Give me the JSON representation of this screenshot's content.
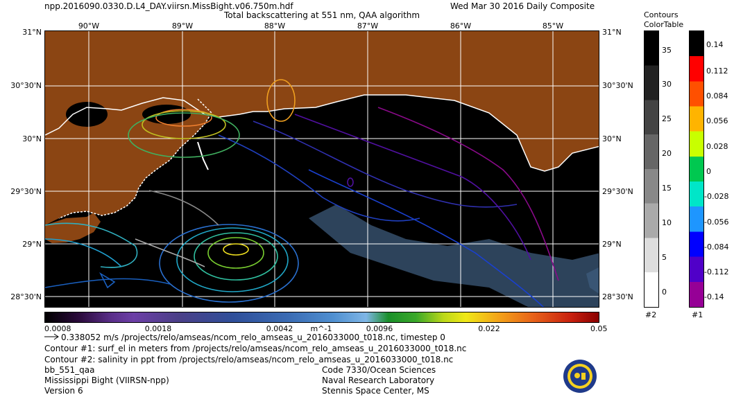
{
  "header": {
    "filename": "npp.2016090.0330.D.L4_DAY.viirsn.MissBight.v06.750m.hdf",
    "title": "Total backscattering at 551 nm, QAA algorithm",
    "date": "Wed Mar 30 2016 Daily Composite"
  },
  "map": {
    "lon_labels": [
      "90°W",
      "89°W",
      "88°W",
      "87°W",
      "86°W",
      "85°W"
    ],
    "lat_labels": [
      "31°N",
      "30°30'N",
      "30°N",
      "29°30'N",
      "29°N",
      "28°30'N"
    ],
    "land_color": "#8b4513",
    "water_color": "#000000"
  },
  "colorbar": {
    "ticks": [
      "0.0008",
      "0.0018",
      "0.0042",
      "m^-1",
      "0.0096",
      "0.022",
      "0.05"
    ]
  },
  "contour_tables": {
    "heading_1": "Contours",
    "heading_2": "ColorTable",
    "c2_ticks": [
      "35",
      "30",
      "25",
      "20",
      "15",
      "10",
      "5",
      "0"
    ],
    "c2_label": "#2",
    "c1_ticks": [
      "0.14",
      "0.112",
      "0.084",
      "0.056",
      "0.028",
      "0",
      "-0.028",
      "-0.056",
      "-0.084",
      "-0.112",
      "-0.14"
    ],
    "c1_label": "#1"
  },
  "footer": {
    "vector_line": "0.338052 m/s /projects/relo/amseas/ncom_relo_amseas_u_2016033000_t018.nc, timestep 0",
    "contour1": "Contour #1: surf_el in meters from /projects/relo/amseas/ncom_relo_amseas_u_2016033000_t018.nc",
    "contour2": "Contour #2: salinity in ppt from /projects/relo/amseas/ncom_relo_amseas_u_2016033000_t018.nc",
    "product": "bb_551_qaa",
    "region": "Mississippi Bight (VIIRSN-npp)",
    "version": "Version 6",
    "code": "Code 7330/Ocean Sciences",
    "lab": "Naval Research Laboratory",
    "location": "Stennis Space Center, MS"
  }
}
